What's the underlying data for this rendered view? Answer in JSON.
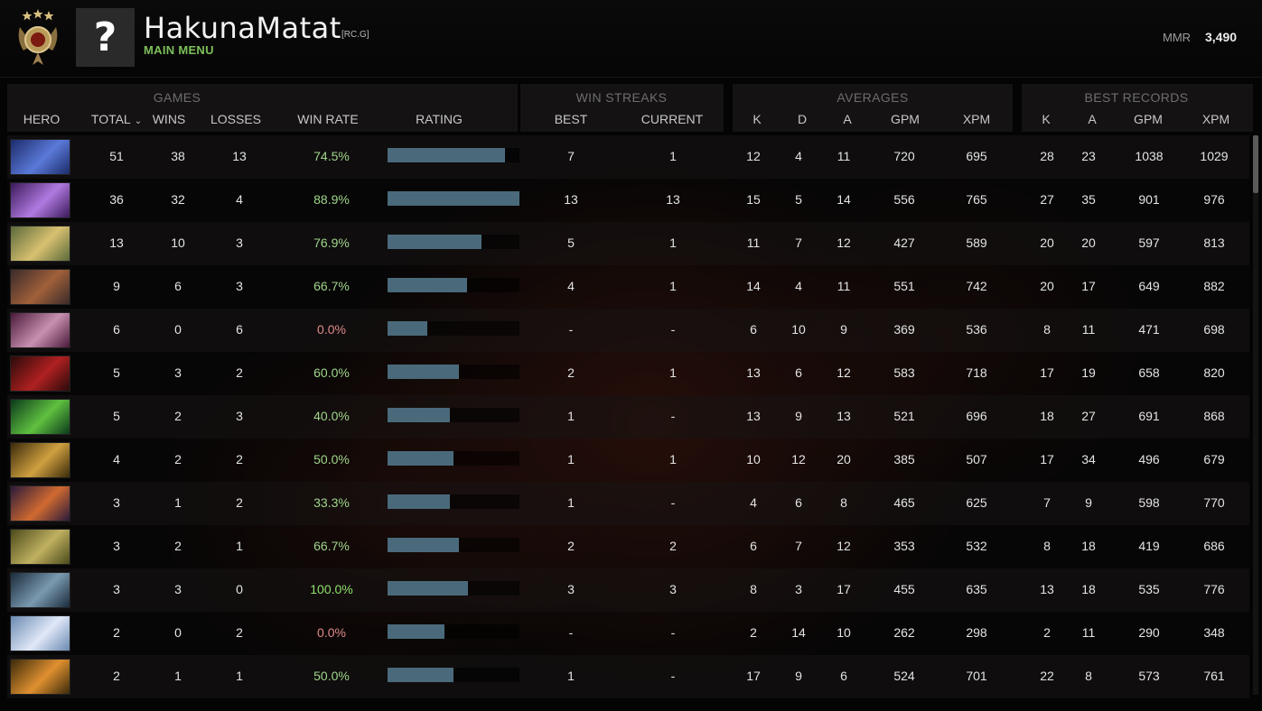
{
  "header": {
    "player_name": "HakunaMatat",
    "tag": "[RC.G]",
    "main_menu": "MAIN MENU",
    "avatar_glyph": "?",
    "mmr_label": "MMR",
    "mmr_value": "3,490"
  },
  "groups": {
    "games": "GAMES",
    "win_streaks": "WIN STREAKS",
    "averages": "AVERAGES",
    "best_records": "BEST RECORDS"
  },
  "columns": {
    "hero": "HERO",
    "total": "TOTAL",
    "wins": "WINS",
    "losses": "LOSSES",
    "win_rate": "WIN RATE",
    "rating": "RATING",
    "best": "BEST",
    "current": "CURRENT",
    "avg_k": "K",
    "avg_d": "D",
    "avg_a": "A",
    "avg_gpm": "GPM",
    "avg_xpm": "XPM",
    "rec_k": "K",
    "rec_a": "A",
    "rec_gpm": "GPM",
    "rec_xpm": "XPM"
  },
  "colors": {
    "accent_green": "#7cc05a",
    "rating_bar": "#4a6a7b",
    "winrate_positive": "#9fd58a",
    "winrate_zero": "#e08a8a"
  },
  "rows": [
    {
      "hero_colors": [
        "#1c2a6a",
        "#5a7ad8"
      ],
      "total": "51",
      "wins": "38",
      "losses": "13",
      "win_rate": "74.5%",
      "rating": 0.89,
      "best": "7",
      "current": "1",
      "k": "12",
      "d": "4",
      "a": "11",
      "gpm": "720",
      "xpm": "695",
      "rk": "28",
      "ra": "23",
      "rgpm": "1038",
      "rxpm": "1029"
    },
    {
      "hero_colors": [
        "#3a1a5a",
        "#b07ae0"
      ],
      "total": "36",
      "wins": "32",
      "losses": "4",
      "win_rate": "88.9%",
      "rating": 1.0,
      "best": "13",
      "current": "13",
      "k": "15",
      "d": "5",
      "a": "14",
      "gpm": "556",
      "xpm": "765",
      "rk": "27",
      "ra": "35",
      "rgpm": "901",
      "rxpm": "976"
    },
    {
      "hero_colors": [
        "#5a6a3a",
        "#d8c070"
      ],
      "total": "13",
      "wins": "10",
      "losses": "3",
      "win_rate": "76.9%",
      "rating": 0.71,
      "best": "5",
      "current": "1",
      "k": "11",
      "d": "7",
      "a": "12",
      "gpm": "427",
      "xpm": "589",
      "rk": "20",
      "ra": "20",
      "rgpm": "597",
      "rxpm": "813"
    },
    {
      "hero_colors": [
        "#3a2a2a",
        "#a0603a"
      ],
      "total": "9",
      "wins": "6",
      "losses": "3",
      "win_rate": "66.7%",
      "rating": 0.6,
      "best": "4",
      "current": "1",
      "k": "14",
      "d": "4",
      "a": "11",
      "gpm": "551",
      "xpm": "742",
      "rk": "20",
      "ra": "17",
      "rgpm": "649",
      "rxpm": "882"
    },
    {
      "hero_colors": [
        "#4a1a3a",
        "#c890b0"
      ],
      "total": "6",
      "wins": "0",
      "losses": "6",
      "win_rate": "0.0%",
      "rating": 0.3,
      "best": "-",
      "current": "-",
      "k": "6",
      "d": "10",
      "a": "9",
      "gpm": "369",
      "xpm": "536",
      "rk": "8",
      "ra": "11",
      "rgpm": "471",
      "rxpm": "698"
    },
    {
      "hero_colors": [
        "#2a0a0a",
        "#b02020"
      ],
      "total": "5",
      "wins": "3",
      "losses": "2",
      "win_rate": "60.0%",
      "rating": 0.54,
      "best": "2",
      "current": "1",
      "k": "13",
      "d": "6",
      "a": "12",
      "gpm": "583",
      "xpm": "718",
      "rk": "17",
      "ra": "19",
      "rgpm": "658",
      "rxpm": "820"
    },
    {
      "hero_colors": [
        "#0a3a1a",
        "#60c040"
      ],
      "total": "5",
      "wins": "2",
      "losses": "3",
      "win_rate": "40.0%",
      "rating": 0.47,
      "best": "1",
      "current": "-",
      "k": "13",
      "d": "9",
      "a": "13",
      "gpm": "521",
      "xpm": "696",
      "rk": "18",
      "ra": "27",
      "rgpm": "691",
      "rxpm": "868"
    },
    {
      "hero_colors": [
        "#3a2a0a",
        "#d0a040"
      ],
      "total": "4",
      "wins": "2",
      "losses": "2",
      "win_rate": "50.0%",
      "rating": 0.5,
      "best": "1",
      "current": "1",
      "k": "10",
      "d": "12",
      "a": "20",
      "gpm": "385",
      "xpm": "507",
      "rk": "17",
      "ra": "34",
      "rgpm": "496",
      "rxpm": "679"
    },
    {
      "hero_colors": [
        "#2a1a3a",
        "#d06a30"
      ],
      "total": "3",
      "wins": "1",
      "losses": "2",
      "win_rate": "33.3%",
      "rating": 0.47,
      "best": "1",
      "current": "-",
      "k": "4",
      "d": "6",
      "a": "8",
      "gpm": "465",
      "xpm": "625",
      "rk": "7",
      "ra": "9",
      "rgpm": "598",
      "rxpm": "770"
    },
    {
      "hero_colors": [
        "#4a4a1a",
        "#c0b060"
      ],
      "total": "3",
      "wins": "2",
      "losses": "1",
      "win_rate": "66.7%",
      "rating": 0.54,
      "best": "2",
      "current": "2",
      "k": "6",
      "d": "7",
      "a": "12",
      "gpm": "353",
      "xpm": "532",
      "rk": "8",
      "ra": "18",
      "rgpm": "419",
      "rxpm": "686"
    },
    {
      "hero_colors": [
        "#1a2a3a",
        "#7a9ab0"
      ],
      "total": "3",
      "wins": "3",
      "losses": "0",
      "win_rate": "100.0%",
      "rating": 0.61,
      "best": "3",
      "current": "3",
      "k": "8",
      "d": "3",
      "a": "17",
      "gpm": "455",
      "xpm": "635",
      "rk": "13",
      "ra": "18",
      "rgpm": "535",
      "rxpm": "776"
    },
    {
      "hero_colors": [
        "#6a8ab0",
        "#e0e8f8"
      ],
      "total": "2",
      "wins": "0",
      "losses": "2",
      "win_rate": "0.0%",
      "rating": 0.43,
      "best": "-",
      "current": "-",
      "k": "2",
      "d": "14",
      "a": "10",
      "gpm": "262",
      "xpm": "298",
      "rk": "2",
      "ra": "11",
      "rgpm": "290",
      "rxpm": "348"
    },
    {
      "hero_colors": [
        "#3a2a0a",
        "#e09030"
      ],
      "total": "2",
      "wins": "1",
      "losses": "1",
      "win_rate": "50.0%",
      "rating": 0.5,
      "best": "1",
      "current": "-",
      "k": "17",
      "d": "9",
      "a": "6",
      "gpm": "524",
      "xpm": "701",
      "rk": "22",
      "ra": "8",
      "rgpm": "573",
      "rxpm": "761"
    }
  ]
}
